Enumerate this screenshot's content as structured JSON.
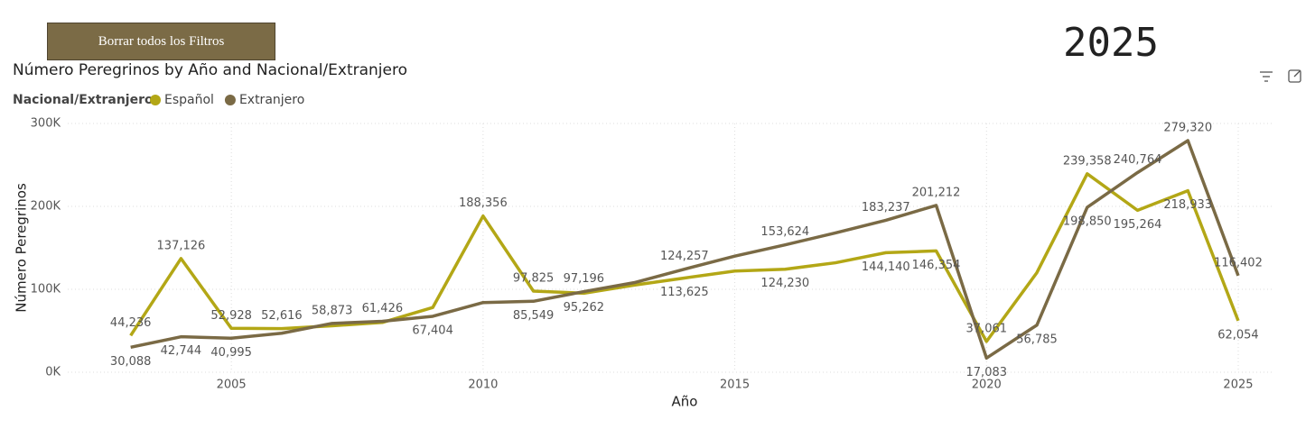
{
  "button": "Borrar todos los Filtros",
  "year_card": "2025",
  "chart_data": {
    "type": "line",
    "title": "Número Peregrinos by Año and Nacional/Extranjero",
    "legend_title": "Nacional/Extranjero",
    "x_label": "Año",
    "y_label": "Número Peregrinos",
    "x": [
      2003,
      2004,
      2005,
      2006,
      2007,
      2008,
      2009,
      2010,
      2011,
      2012,
      2013,
      2014,
      2015,
      2016,
      2017,
      2018,
      2019,
      2020,
      2021,
      2022,
      2023,
      2024,
      2025
    ],
    "series": [
      {
        "name": "Español",
        "color": "#b3a716",
        "values": [
          44236,
          137126,
          52928,
          52616,
          56000,
          60000,
          78000,
          188356,
          97825,
          95262,
          105000,
          113625,
          122000,
          124230,
          132000,
          144140,
          146354,
          37061,
          120000,
          239358,
          195264,
          218933,
          62054
        ],
        "value_labels": [
          "44,236",
          "137,126",
          "52,928",
          "52,616",
          null,
          null,
          null,
          "188,356",
          "97,825",
          "95,262",
          null,
          "113,625",
          null,
          "124,230",
          null,
          "144,140",
          "146,354",
          "37,061",
          null,
          "239,358",
          "195,264",
          "218,933",
          "62,054"
        ]
      },
      {
        "name": "Extranjero",
        "color": "#7a6a45",
        "values": [
          30088,
          42744,
          40995,
          47000,
          58873,
          61426,
          67404,
          84000,
          85549,
          97196,
          108000,
          124257,
          140000,
          153624,
          168000,
          183237,
          201212,
          17083,
          56785,
          198850,
          240764,
          279320,
          116402
        ],
        "value_labels": [
          "30,088",
          "42,744",
          "40,995",
          null,
          "58,873",
          "61,426",
          "67,404",
          null,
          "85,549",
          "97,196",
          null,
          "124,257",
          null,
          "153,624",
          null,
          "183,237",
          "201,212",
          "17,083",
          "56,785",
          "198,850",
          "240,764",
          "279,320",
          "116,402"
        ]
      }
    ],
    "xlim": [
      2001.75,
      2025.7
    ],
    "xticks": [
      2005,
      2010,
      2015,
      2020,
      2025
    ],
    "ylim": [
      0,
      300000
    ],
    "yticks": [
      {
        "value": 0,
        "label": "0K"
      },
      {
        "value": 100000,
        "label": "100K"
      },
      {
        "value": 200000,
        "label": "200K"
      },
      {
        "value": 300000,
        "label": "300K"
      }
    ],
    "grid": true,
    "legend": "top-left"
  }
}
